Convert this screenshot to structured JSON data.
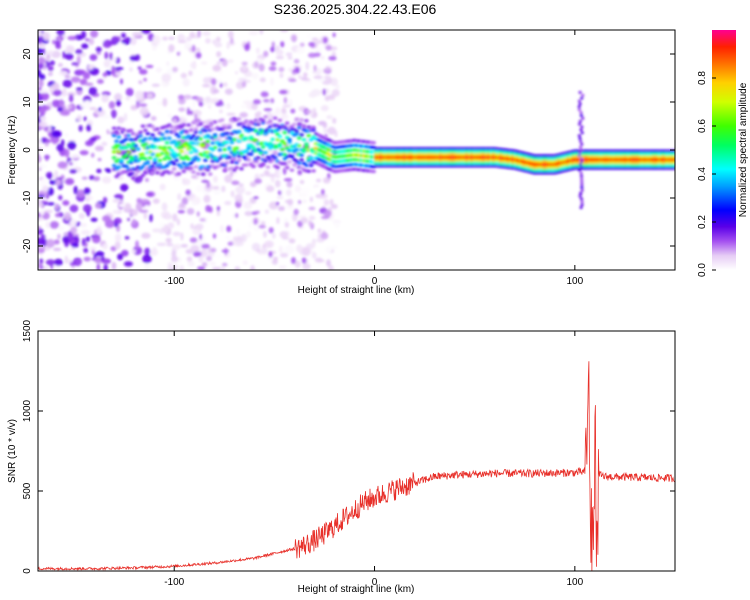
{
  "figure": {
    "title": "S236.2025.304.22.43.E06"
  },
  "chart_data": [
    {
      "type": "heatmap",
      "title": "S236.2025.304.22.43.E06",
      "xlabel": "Height of straight line (km)",
      "ylabel": "Frequency (Hz)",
      "xlim": [
        -168,
        150
      ],
      "ylim": [
        -25,
        25
      ],
      "x_ticks": [
        "-100",
        "0",
        "100"
      ],
      "y_ticks": [
        "20",
        "10",
        "0",
        "-10",
        "-20"
      ],
      "colorbar": {
        "label": "Normalized spectral amplitude",
        "range": [
          0,
          1
        ],
        "ticks": [
          "0.0",
          "0.2",
          "0.4",
          "0.6",
          "0.8"
        ]
      },
      "ridge_frequency_hz": [
        {
          "x": -120,
          "y": -0.5
        },
        {
          "x": -100,
          "y": 0
        },
        {
          "x": -80,
          "y": 0.5
        },
        {
          "x": -60,
          "y": 2
        },
        {
          "x": -40,
          "y": 1
        },
        {
          "x": -30,
          "y": 0.5
        },
        {
          "x": -20,
          "y": -1.5
        },
        {
          "x": -10,
          "y": -1
        },
        {
          "x": 0,
          "y": -1.5
        },
        {
          "x": 20,
          "y": -1.5
        },
        {
          "x": 40,
          "y": -1.5
        },
        {
          "x": 60,
          "y": -1.5
        },
        {
          "x": 70,
          "y": -2
        },
        {
          "x": 80,
          "y": -3
        },
        {
          "x": 90,
          "y": -3
        },
        {
          "x": 100,
          "y": -2
        },
        {
          "x": 110,
          "y": -2
        },
        {
          "x": 150,
          "y": -2
        }
      ],
      "grid": false
    },
    {
      "type": "line",
      "xlabel": "Height of straight line (km)",
      "ylabel": "SNR (10 * v/v)",
      "xlim": [
        -168,
        150
      ],
      "ylim": [
        0,
        1500
      ],
      "x_ticks": [
        "-100",
        "0",
        "100"
      ],
      "y_ticks": [
        "0",
        "500",
        "1000",
        "1500"
      ],
      "color": "#e8302a",
      "series": [
        {
          "x": [
            -168,
            -140,
            -120,
            -100,
            -80,
            -60,
            -50,
            -40,
            -35,
            -30,
            -25,
            -20,
            -15,
            -10,
            -5,
            0,
            10,
            20,
            30,
            40,
            60,
            80,
            100,
            105,
            107,
            108,
            109,
            110,
            111,
            112,
            115,
            130,
            150
          ],
          "y": [
            15,
            15,
            20,
            30,
            50,
            80,
            110,
            140,
            160,
            190,
            230,
            280,
            330,
            380,
            430,
            460,
            510,
            550,
            590,
            600,
            610,
            610,
            615,
            620,
            1100,
            200,
            100,
            900,
            200,
            600,
            590,
            585,
            580
          ]
        }
      ],
      "grid": false
    }
  ]
}
